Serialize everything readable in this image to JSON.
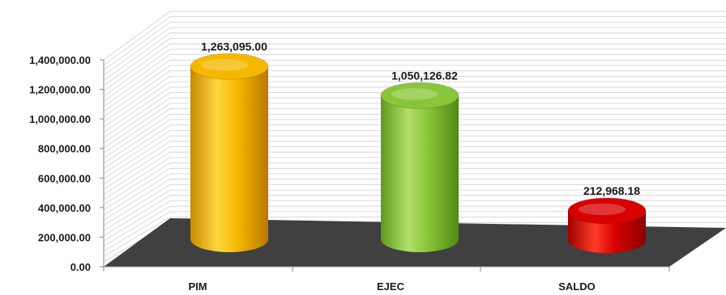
{
  "chart_data": {
    "type": "bar",
    "style": "3d-cylinder",
    "title": "",
    "xlabel": "",
    "ylabel": "",
    "categories": [
      "PIM",
      "EJEC",
      "SALDO"
    ],
    "values": [
      1263095.0,
      1050126.82,
      212968.18
    ],
    "data_labels": [
      "1,263,095.00",
      "1,050,126.82",
      "212,968.18"
    ],
    "bar_colors": [
      "#f5b800",
      "#8ac63a",
      "#d80000"
    ],
    "ylim": [
      0,
      1400000
    ],
    "y_ticks": [
      0,
      200000,
      400000,
      600000,
      800000,
      1000000,
      1200000,
      1400000
    ],
    "y_tick_labels": [
      "0.00",
      "200,000.00",
      "400,000.00",
      "600,000.00",
      "800,000.00",
      "1,000,000.00",
      "1,200,000.00",
      "1,400,000.00"
    ],
    "grid": true,
    "legend": "none",
    "floor_color": "#404040"
  }
}
